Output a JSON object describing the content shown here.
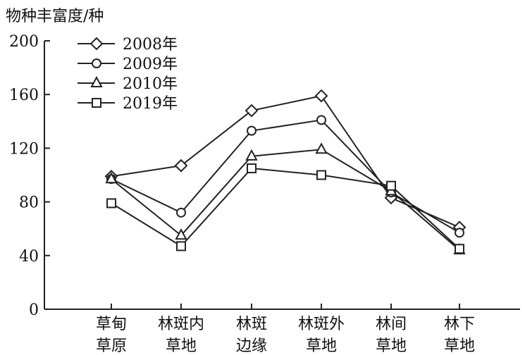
{
  "chart_data": {
    "type": "line",
    "ylabel": "物种丰富度/种",
    "xlabel": "",
    "ylim": [
      0,
      200
    ],
    "yticks": [
      0,
      40,
      80,
      120,
      160,
      200
    ],
    "categories": [
      [
        "草甸",
        "草原"
      ],
      [
        "林斑内",
        "草地"
      ],
      [
        "林斑",
        "边缘"
      ],
      [
        "林斑外",
        "草地"
      ],
      [
        "林间",
        "草地"
      ],
      [
        "林下",
        "草地"
      ]
    ],
    "series": [
      {
        "name": "2008年",
        "marker": "diamond",
        "values": [
          99,
          107,
          148,
          159,
          83,
          61
        ]
      },
      {
        "name": "2009年",
        "marker": "circle",
        "values": [
          97,
          72,
          133,
          141,
          87,
          57
        ]
      },
      {
        "name": "2010年",
        "marker": "triangle",
        "values": [
          97,
          55,
          114,
          119,
          88,
          44
        ]
      },
      {
        "name": "2019年",
        "marker": "square",
        "values": [
          79,
          47,
          105,
          100,
          92,
          45
        ]
      }
    ],
    "grid": false,
    "legend_position": "top-left",
    "line_color": "#222222"
  }
}
